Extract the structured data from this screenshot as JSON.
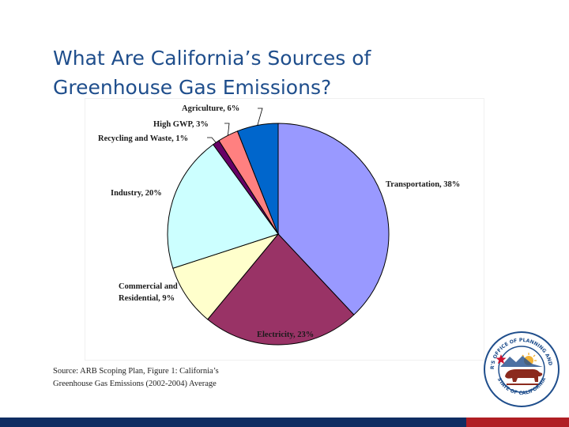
{
  "slide": {
    "title_line1": "What Are California’s Sources of",
    "title_line2": "Greenhouse Gas Emissions?",
    "source_line1": "Source: ARB Scoping Plan, Figure 1: California’s",
    "source_line2": "Greenhouse Gas Emissions (2002-2004) Average",
    "title_color": "#1f4e8c"
  },
  "logo": {
    "icon": "ca-governors-office-seal-icon",
    "ring_text_top": "GOVERNOR'S OFFICE OF PLANNING AND RESEARCH",
    "ring_text_bottom": "STATE OF CALIFORNIA",
    "colors": {
      "ring": "#1f4e8c",
      "bear": "#8b2a1e",
      "sun": "#f2b134",
      "star": "#c8102e"
    }
  },
  "footer": {
    "bar_colors": [
      "#0f2d62",
      "#b01e24"
    ]
  },
  "chart_data": {
    "type": "pie",
    "unit": "%",
    "slices": [
      {
        "name": "Transportation",
        "label": "Transportation, 38%",
        "value": 38,
        "color": "#9999ff"
      },
      {
        "name": "Electricity",
        "label": "Electricity, 23%",
        "value": 23,
        "color": "#993366"
      },
      {
        "name": "Commercial and Residential",
        "label_lines": [
          "Commercial and",
          "Residential, 9%"
        ],
        "value": 9,
        "color": "#ffffcc"
      },
      {
        "name": "Industry",
        "label": "Industry, 20%",
        "value": 20,
        "color": "#ccffff"
      },
      {
        "name": "Recycling and Waste",
        "label": "Recycling and Waste, 1%",
        "value": 1,
        "color": "#660066"
      },
      {
        "name": "High GWP",
        "label": "High GWP, 3%",
        "value": 3,
        "color": "#ff8080"
      },
      {
        "name": "Agriculture",
        "label": "Agriculture, 6%",
        "value": 6,
        "color": "#0066cc"
      }
    ]
  }
}
